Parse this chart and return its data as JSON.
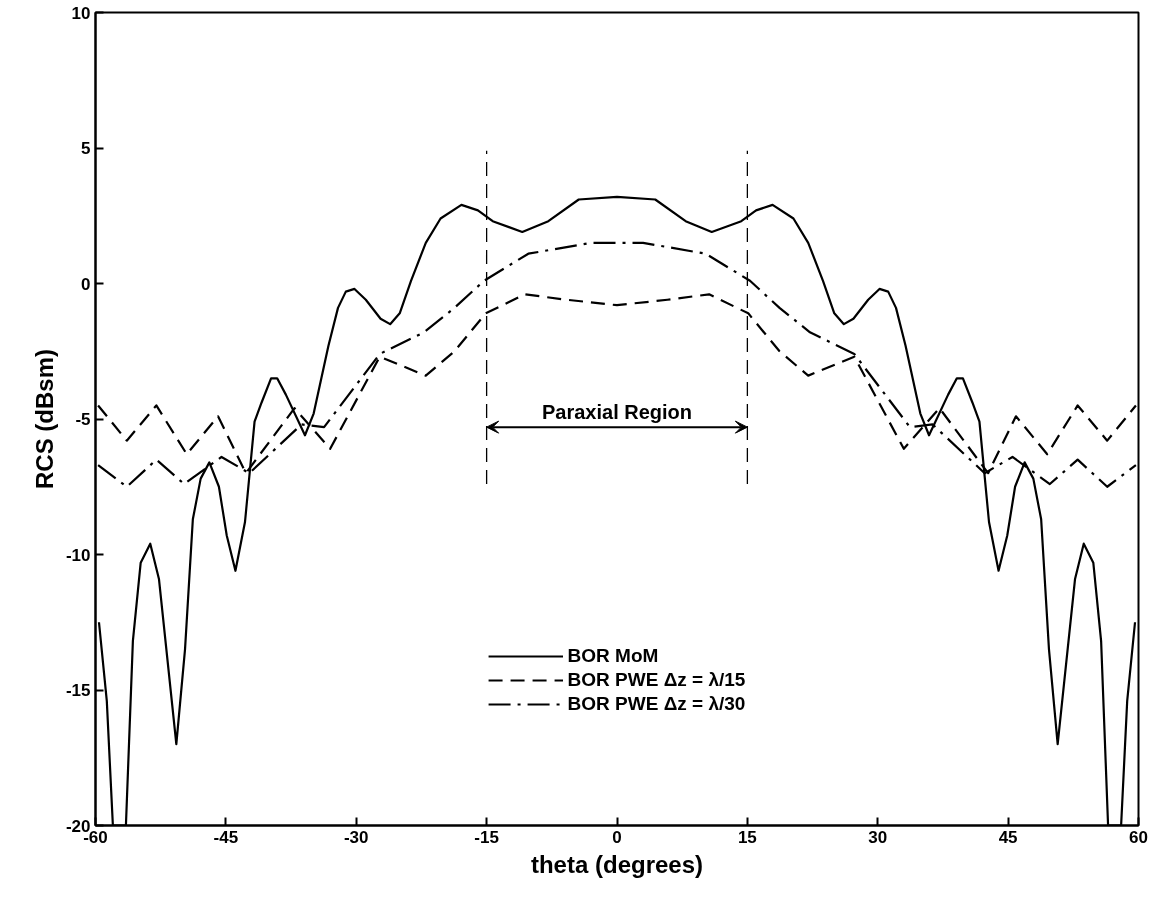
{
  "chart_data": {
    "type": "line",
    "xlabel": "theta (degrees)",
    "ylabel": "RCS (dBsm)",
    "xlim": [
      -60,
      60
    ],
    "ylim": [
      -20,
      10
    ],
    "xticks": [
      -60,
      -45,
      -30,
      -15,
      0,
      15,
      30,
      45,
      60
    ],
    "yticks": [
      -20,
      -15,
      -10,
      -5,
      0,
      5,
      10
    ],
    "grid": false,
    "legend": "bottom",
    "marker": "none",
    "series": [
      {
        "name": "BOR MoM",
        "color": "#000000",
        "line_style": "solid",
        "x": [
          -59.6,
          -58.7,
          -58,
          -56.5,
          -55.7,
          -54.8,
          -53.7,
          -52.7,
          -50.7,
          -49.7,
          -48.8,
          -47.9,
          -46.9,
          -45.8,
          -44.9,
          -43.9,
          -42.8,
          -41.7,
          -40.9,
          -39.8,
          -39.1,
          -38.1,
          -35.9,
          -34.9,
          -33.2,
          -32.1,
          -31.2,
          -30.2,
          -28.9,
          -27.2,
          -26.1,
          -25,
          -23.7,
          -22,
          -20.3,
          -17.9,
          -16,
          -14.3,
          -10.9,
          -7.9,
          -4.4,
          0,
          4.4,
          7.9,
          10.9,
          14.3,
          16,
          17.9,
          20.3,
          22,
          23.7,
          25,
          26.1,
          27.2,
          28.9,
          30.2,
          31.2,
          32.1,
          33.2,
          34.9,
          35.9,
          38.1,
          39.1,
          39.8,
          40.9,
          41.7,
          42.8,
          43.9,
          44.9,
          45.8,
          46.9,
          47.9,
          48.8,
          49.7,
          50.7,
          52.7,
          53.7,
          54.8,
          55.7,
          56.5,
          58,
          58.7,
          59.6
        ],
        "values": [
          -12.5,
          -15.4,
          -20,
          -20,
          -13.2,
          -10.3,
          -9.6,
          -10.9,
          -17,
          -13.5,
          -8.7,
          -7.2,
          -6.6,
          -7.5,
          -9.3,
          -10.6,
          -8.8,
          -5.1,
          -4.4,
          -3.5,
          -3.5,
          -4.1,
          -5.6,
          -4.8,
          -2.3,
          -0.9,
          -0.3,
          -0.2,
          -0.6,
          -1.3,
          -1.5,
          -1.1,
          0.1,
          1.5,
          2.4,
          2.9,
          2.7,
          2.3,
          1.9,
          2.3,
          3.1,
          3.2,
          3.1,
          2.3,
          1.9,
          2.3,
          2.7,
          2.9,
          2.4,
          1.5,
          0.1,
          -1.1,
          -1.5,
          -1.3,
          -0.6,
          -0.2,
          -0.3,
          -0.9,
          -2.3,
          -4.8,
          -5.6,
          -4.1,
          -3.5,
          -3.5,
          -4.4,
          -5.1,
          -8.8,
          -10.6,
          -9.3,
          -7.5,
          -6.6,
          -7.2,
          -8.7,
          -13.5,
          -17,
          -10.9,
          -9.6,
          -10.3,
          -13.2,
          -20,
          -20,
          -15.4,
          -12.5
        ]
      },
      {
        "name": "BOR PWE Δz = λ/15",
        "color": "#000000",
        "line_style": "dashed",
        "x": [
          -59.7,
          -56.4,
          -53,
          -49.5,
          -45.9,
          -42.7,
          -37.1,
          -33,
          -27.3,
          -22,
          -18.7,
          -15.1,
          -10.6,
          -5.8,
          0,
          5.8,
          10.6,
          15.1,
          18.7,
          22,
          27.3,
          33,
          37.1,
          42.7,
          45.9,
          49.5,
          53,
          56.4,
          59.7
        ],
        "values": [
          -4.5,
          -5.8,
          -4.5,
          -6.3,
          -4.9,
          -7,
          -4.6,
          -6.1,
          -2.7,
          -3.4,
          -2.5,
          -1.1,
          -0.4,
          -0.6,
          -0.8,
          -0.6,
          -0.4,
          -1.1,
          -2.5,
          -3.4,
          -2.7,
          -6.1,
          -4.6,
          -7,
          -4.9,
          -6.3,
          -4.5,
          -5.8,
          -4.5
        ]
      },
      {
        "name": "BOR PWE Δz = λ/30",
        "color": "#000000",
        "line_style": "dashdot",
        "x": [
          -59.7,
          -56.4,
          -53,
          -49.8,
          -45.5,
          -42.3,
          -36.3,
          -33.7,
          -27.3,
          -22.2,
          -18.7,
          -15.3,
          -10.2,
          -3,
          0,
          3,
          10.2,
          15.3,
          18.7,
          22.2,
          27.3,
          33.7,
          36.3,
          42.3,
          45.5,
          49.8,
          53,
          56.4,
          59.7
        ],
        "values": [
          -6.7,
          -7.5,
          -6.5,
          -7.4,
          -6.4,
          -7,
          -5.2,
          -5.3,
          -2.6,
          -1.8,
          -0.9,
          0.1,
          1.1,
          1.5,
          1.5,
          1.5,
          1.1,
          0.1,
          -0.9,
          -1.8,
          -2.6,
          -5.3,
          -5.2,
          -7,
          -6.4,
          -7.4,
          -6.5,
          -7.5,
          -6.7
        ]
      }
    ],
    "ref_lines": [
      {
        "axis": "x",
        "value": -15,
        "color": "#000000",
        "line_style": "dashed"
      },
      {
        "axis": "x",
        "value": 15,
        "color": "#000000",
        "line_style": "dashed"
      }
    ],
    "annotations": [
      "Paraxial Region"
    ]
  }
}
